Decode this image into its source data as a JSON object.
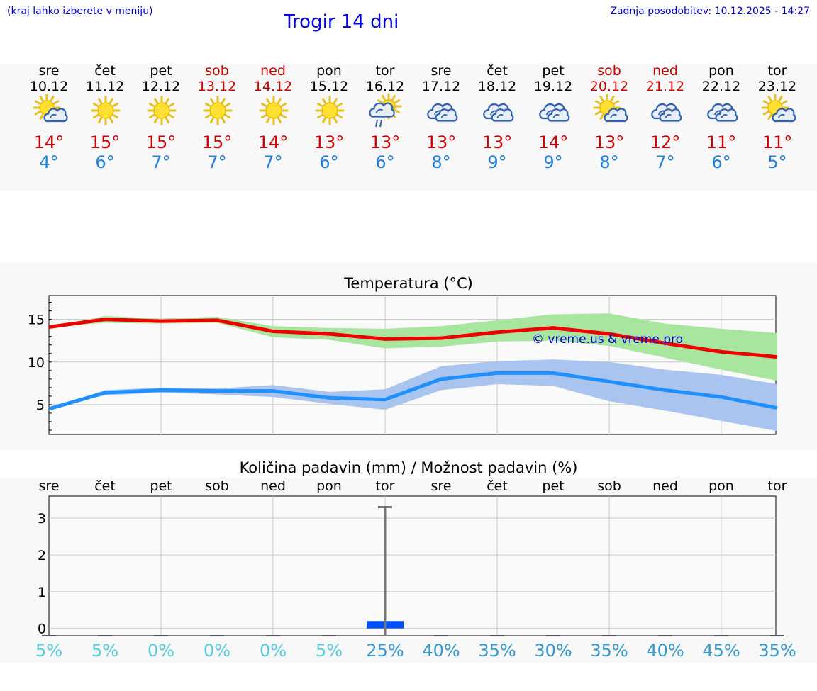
{
  "header": {
    "location_hint": "(kraj lahko izberete v meniju)",
    "title": "Trogir 14 dni",
    "updated": "Zadnja posodobitev: 10.12.2025 - 14:27"
  },
  "colors": {
    "max": "#ee0000",
    "min": "#1e90ff",
    "max_band": "#a8e6a0",
    "min_band": "#aac4f0",
    "bar": "#0050ff"
  },
  "days": [
    {
      "name": "sre",
      "date": "10.12",
      "weekend": false,
      "icon": "sun-cloud-icon",
      "max": "14°",
      "min": "4°"
    },
    {
      "name": "čet",
      "date": "11.12",
      "weekend": false,
      "icon": "sun-icon",
      "max": "15°",
      "min": "6°"
    },
    {
      "name": "pet",
      "date": "12.12",
      "weekend": false,
      "icon": "sun-icon",
      "max": "15°",
      "min": "7°"
    },
    {
      "name": "sob",
      "date": "13.12",
      "weekend": true,
      "icon": "sun-icon",
      "max": "15°",
      "min": "7°"
    },
    {
      "name": "ned",
      "date": "14.12",
      "weekend": true,
      "icon": "sun-icon",
      "max": "14°",
      "min": "7°"
    },
    {
      "name": "pon",
      "date": "15.12",
      "weekend": false,
      "icon": "sun-icon",
      "max": "13°",
      "min": "6°"
    },
    {
      "name": "tor",
      "date": "16.12",
      "weekend": false,
      "icon": "sun-cloud-rain-icon",
      "max": "13°",
      "min": "6°"
    },
    {
      "name": "sre",
      "date": "17.12",
      "weekend": false,
      "icon": "cloud-icon",
      "max": "13°",
      "min": "8°"
    },
    {
      "name": "čet",
      "date": "18.12",
      "weekend": false,
      "icon": "cloud-icon",
      "max": "13°",
      "min": "9°"
    },
    {
      "name": "pet",
      "date": "19.12",
      "weekend": false,
      "icon": "cloud-icon",
      "max": "14°",
      "min": "9°"
    },
    {
      "name": "sob",
      "date": "20.12",
      "weekend": true,
      "icon": "sun-cloud-icon",
      "max": "13°",
      "min": "8°"
    },
    {
      "name": "ned",
      "date": "21.12",
      "weekend": true,
      "icon": "cloud-icon",
      "max": "12°",
      "min": "7°"
    },
    {
      "name": "pon",
      "date": "22.12",
      "weekend": false,
      "icon": "cloud-icon",
      "max": "11°",
      "min": "6°"
    },
    {
      "name": "tor",
      "date": "23.12",
      "weekend": false,
      "icon": "sun-cloud-icon",
      "max": "11°",
      "min": "5°"
    }
  ],
  "chart_data": [
    {
      "type": "line",
      "title": "Temperatura (°C)",
      "watermark": "© vreme.us & vreme.pro",
      "ylim": [
        1.5,
        17.8
      ],
      "yticks": [
        5,
        10,
        15
      ],
      "ytick_labels": [
        "5",
        "10",
        "15"
      ],
      "series": [
        {
          "name": "max",
          "values": [
            14.1,
            15.0,
            14.8,
            14.9,
            13.6,
            13.3,
            12.7,
            12.8,
            13.5,
            14.0,
            13.3,
            12.2,
            11.2,
            10.6
          ],
          "band_low": [
            14.1,
            14.6,
            14.5,
            14.6,
            12.9,
            12.6,
            11.6,
            11.8,
            12.4,
            12.5,
            11.9,
            10.5,
            9.1,
            7.8
          ],
          "band_high": [
            14.1,
            15.4,
            15.1,
            15.3,
            14.2,
            14.0,
            13.9,
            14.2,
            14.9,
            15.6,
            15.7,
            14.5,
            13.9,
            13.4
          ]
        },
        {
          "name": "min",
          "values": [
            4.5,
            6.4,
            6.7,
            6.6,
            6.6,
            5.8,
            5.6,
            8.0,
            8.7,
            8.7,
            7.7,
            6.7,
            5.9,
            4.6
          ],
          "band_low": [
            4.5,
            6.1,
            6.4,
            6.2,
            5.9,
            5.1,
            4.4,
            6.7,
            7.4,
            7.2,
            5.4,
            4.3,
            3.1,
            1.9
          ],
          "band_high": [
            4.5,
            6.7,
            7.0,
            6.9,
            7.3,
            6.5,
            6.8,
            9.5,
            10.1,
            10.3,
            10.0,
            9.1,
            8.5,
            7.4
          ]
        }
      ]
    },
    {
      "type": "bar",
      "title": "Količina padavin (mm) / Možnost padavin (%)",
      "categories": [
        "sre",
        "čet",
        "pet",
        "sob",
        "ned",
        "pon",
        "tor",
        "sre",
        "čet",
        "pet",
        "sob",
        "ned",
        "pon",
        "tor"
      ],
      "ylim": [
        -0.2,
        3.6
      ],
      "yticks": [
        0,
        1,
        2,
        3
      ],
      "ytick_labels": [
        "0",
        "1",
        "2",
        "3"
      ],
      "values": [
        0,
        0,
        0,
        0,
        0,
        0,
        0.2,
        0,
        0,
        0,
        0,
        0,
        0,
        0
      ],
      "error_high": [
        0,
        0,
        0,
        0,
        0,
        0,
        3.3,
        0,
        0,
        0,
        0,
        0,
        0,
        0
      ],
      "probability": [
        "5%",
        "5%",
        "0%",
        "0%",
        "0%",
        "5%",
        "25%",
        "40%",
        "35%",
        "30%",
        "35%",
        "40%",
        "45%",
        "35%"
      ],
      "probability_values": [
        5,
        5,
        0,
        0,
        0,
        5,
        25,
        40,
        35,
        30,
        35,
        40,
        45,
        35
      ]
    }
  ]
}
